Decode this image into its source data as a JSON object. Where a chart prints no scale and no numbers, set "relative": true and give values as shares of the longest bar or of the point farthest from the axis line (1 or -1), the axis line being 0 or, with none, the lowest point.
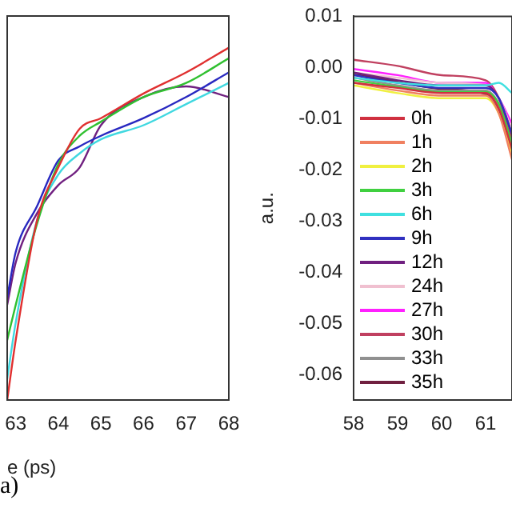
{
  "chart_data": [
    {
      "type": "line",
      "relative": true,
      "xlabel": "e (ps)",
      "annotations": [
        "a)"
      ],
      "x": [
        62.8,
        63,
        63.5,
        64,
        64.5,
        65,
        66,
        67,
        68
      ],
      "xlim": [
        62.8,
        68
      ],
      "xticks": [
        63,
        64,
        65,
        66,
        67,
        68
      ],
      "tick_labels": "x",
      "grid": false,
      "legend": false,
      "series": [
        {
          "color": "#e03030",
          "values": [
            0,
            0.17,
            0.51,
            0.66,
            0.77,
            0.8,
            0.87,
            0.93,
            1
          ]
        },
        {
          "color": "#30c030",
          "values": [
            0.17,
            0.27,
            0.5,
            0.67,
            0.75,
            0.79,
            0.86,
            0.9,
            0.97
          ]
        },
        {
          "color": "#40d8e0",
          "values": [
            0.06,
            0.22,
            0.51,
            0.64,
            0.7,
            0.74,
            0.78,
            0.84,
            0.9
          ]
        },
        {
          "color": "#2828c0",
          "values": [
            0.29,
            0.42,
            0.55,
            0.68,
            0.72,
            0.75,
            0.8,
            0.86,
            0.93
          ]
        },
        {
          "color": "#702080",
          "values": [
            0.27,
            0.39,
            0.53,
            0.61,
            0.66,
            0.78,
            0.86,
            0.89,
            0.86
          ]
        }
      ]
    },
    {
      "type": "line",
      "ylabel": "a.u.",
      "x": [
        58,
        59,
        60,
        61,
        61.3,
        61.6
      ],
      "xlim": [
        58,
        61.6
      ],
      "xticks": [
        58,
        59,
        60,
        61
      ],
      "ylim": [
        -0.065,
        0.01
      ],
      "yticks": [
        {
          "value": 0.01,
          "label": "0.01"
        },
        {
          "value": 0,
          "label": "0.00"
        },
        {
          "value": -0.01,
          "label": "-0.01"
        },
        {
          "value": -0.02,
          "label": "-0.02"
        },
        {
          "value": -0.03,
          "label": "-0.03"
        },
        {
          "value": -0.04,
          "label": "-0.04"
        },
        {
          "value": -0.05,
          "label": "-0.05"
        },
        {
          "value": -0.06,
          "label": "-0.06"
        }
      ],
      "grid": false,
      "legend": "left",
      "series": [
        {
          "name": "0h",
          "color": "#d03040",
          "values": [
            -0.003,
            -0.004,
            -0.005,
            -0.005,
            -0.008,
            -0.016
          ]
        },
        {
          "name": "1h",
          "color": "#f08060",
          "values": [
            -0.003,
            -0.0045,
            -0.0055,
            -0.0055,
            -0.009,
            -0.018
          ]
        },
        {
          "name": "2h",
          "color": "#f0f040",
          "values": [
            -0.0035,
            -0.005,
            -0.006,
            -0.006,
            -0.009,
            -0.017
          ]
        },
        {
          "name": "3h",
          "color": "#40d040",
          "values": [
            -0.0025,
            -0.0038,
            -0.0048,
            -0.0048,
            -0.0072,
            -0.015
          ]
        },
        {
          "name": "6h",
          "color": "#40e0e0",
          "values": [
            -0.002,
            -0.003,
            -0.0035,
            -0.0035,
            -0.003,
            -0.005
          ]
        },
        {
          "name": "9h",
          "color": "#3030c0",
          "values": [
            -0.0015,
            -0.003,
            -0.004,
            -0.004,
            -0.006,
            -0.013
          ]
        },
        {
          "name": "12h",
          "color": "#702080",
          "values": [
            -0.001,
            -0.0025,
            -0.0035,
            -0.0035,
            -0.006,
            -0.013
          ]
        },
        {
          "name": "24h",
          "color": "#f0c0d0",
          "values": [
            -0.001,
            -0.002,
            -0.003,
            -0.0035,
            -0.006,
            -0.012
          ]
        },
        {
          "name": "27h",
          "color": "#ff20ff",
          "values": [
            -0.0003,
            -0.0015,
            -0.003,
            -0.003,
            -0.006,
            -0.011
          ]
        },
        {
          "name": "30h",
          "color": "#c04060",
          "values": [
            0.0015,
            0.0003,
            -0.0015,
            -0.0025,
            -0.006,
            -0.014
          ]
        },
        {
          "name": "33h",
          "color": "#909090",
          "values": [
            -0.002,
            -0.0035,
            -0.0045,
            -0.0045,
            -0.007,
            -0.014
          ]
        },
        {
          "name": "35h",
          "color": "#702040",
          "values": [
            -0.0012,
            -0.0028,
            -0.0042,
            -0.0052,
            -0.0085,
            -0.0155
          ]
        }
      ]
    }
  ]
}
